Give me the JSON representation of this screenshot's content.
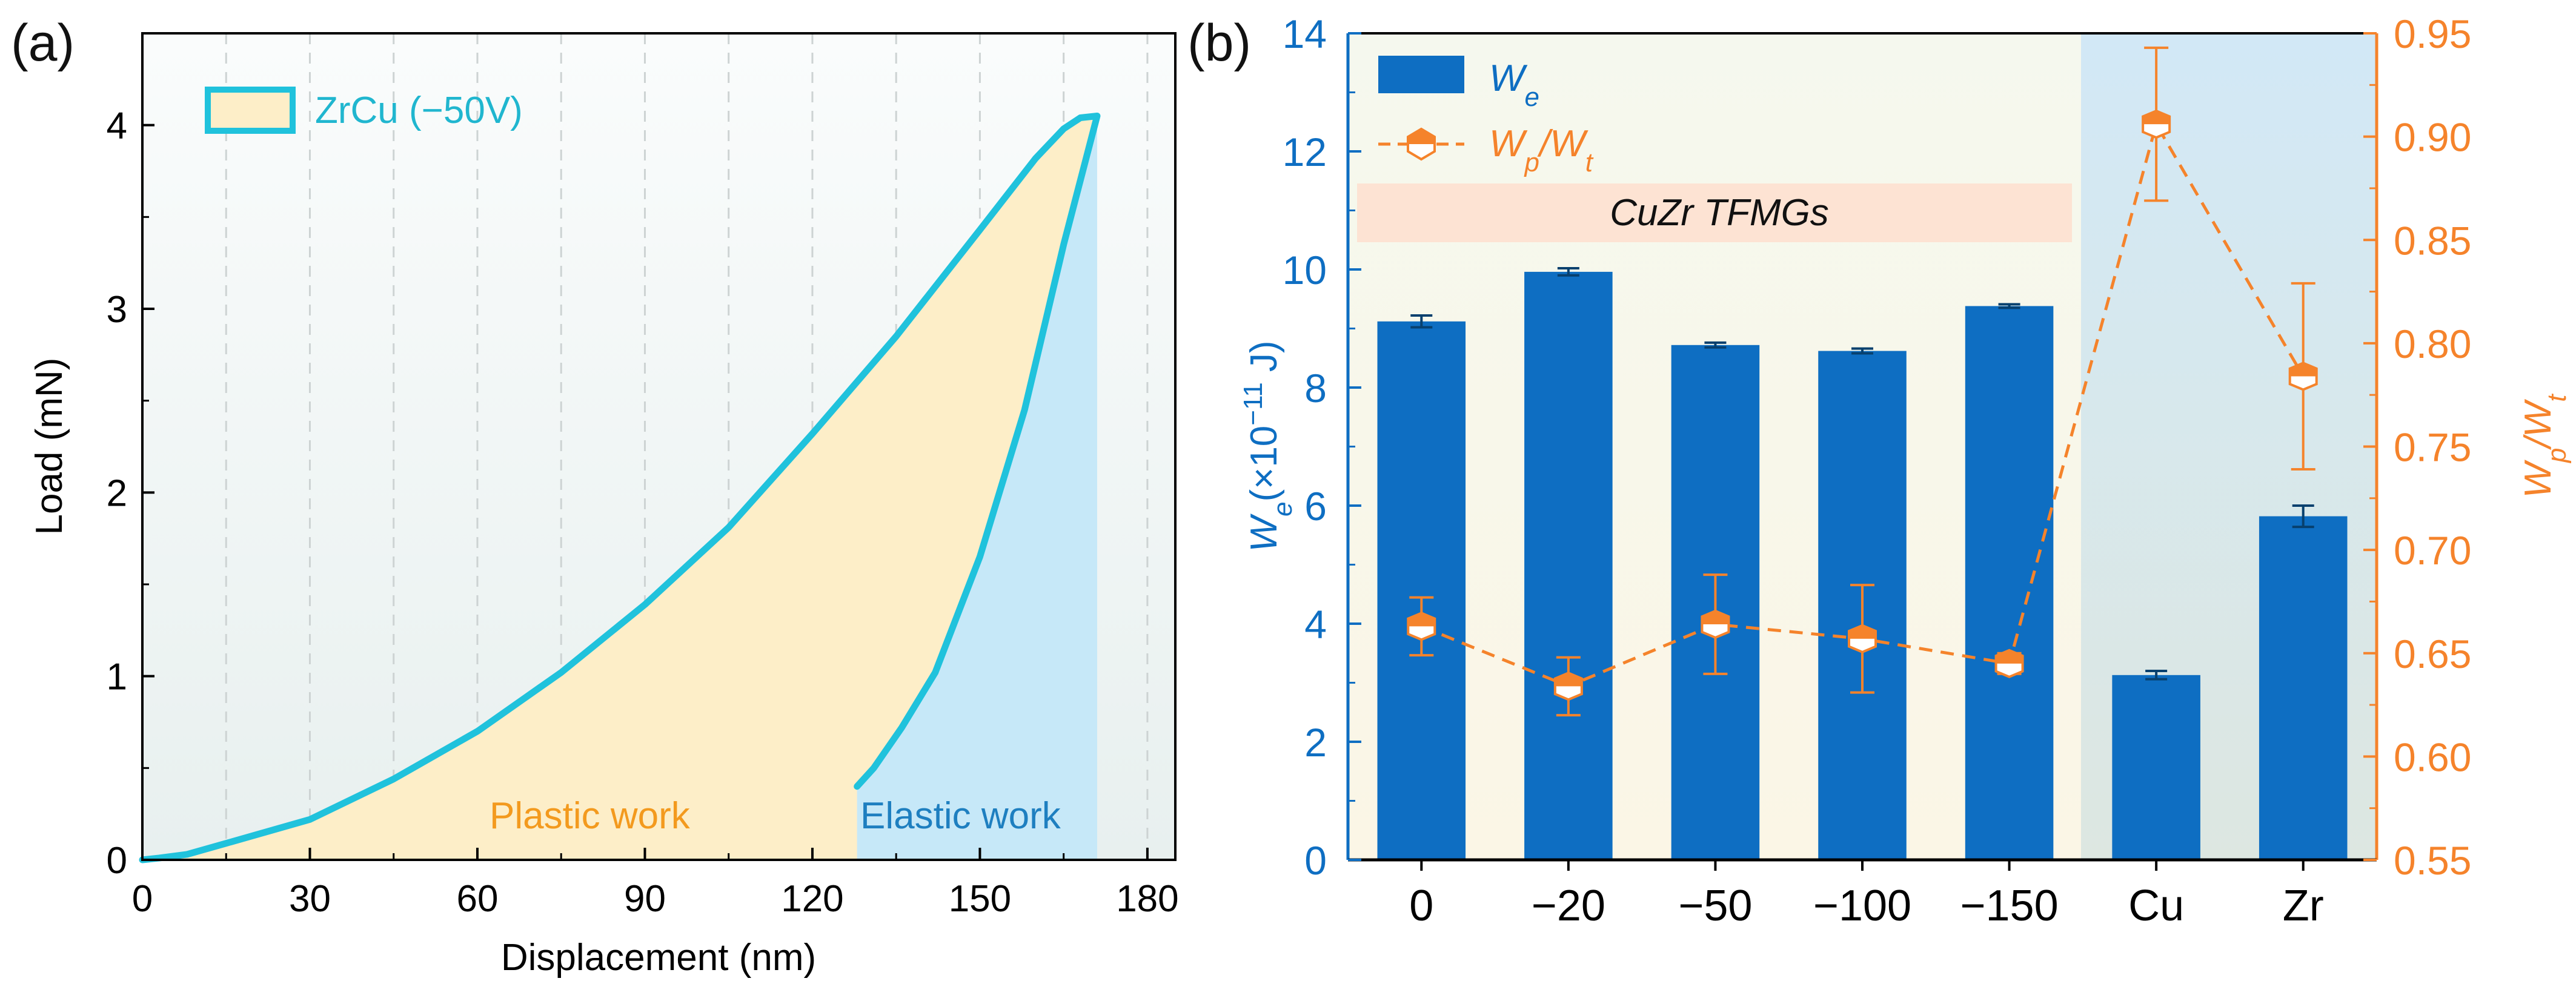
{
  "chart_data": [
    {
      "panel_label": "(a)",
      "type": "line",
      "xlabel": "Displacement (nm)",
      "ylabel": "Load (mN)",
      "xlim": [
        0,
        185
      ],
      "ylim": [
        0,
        4.5
      ],
      "xticks": [
        0,
        30,
        60,
        90,
        120,
        150,
        180
      ],
      "yticks": [
        0,
        1,
        2,
        3,
        4
      ],
      "grid": "vertical dashed",
      "legend": {
        "position": "top-left",
        "label": "ZrCu (−50V)"
      },
      "annotations": {
        "plastic": "Plastic work",
        "elastic": "Elastic work"
      },
      "series": [
        {
          "name": "loading",
          "x": [
            0,
            3,
            8,
            15,
            30,
            45,
            60,
            75,
            90,
            105,
            120,
            135,
            150,
            160,
            165,
            168
          ],
          "y": [
            0,
            0.01,
            0.03,
            0.09,
            0.22,
            0.44,
            0.7,
            1.02,
            1.39,
            1.81,
            2.32,
            2.85,
            3.43,
            3.82,
            3.98,
            4.04
          ]
        },
        {
          "name": "hold",
          "x": [
            168,
            171
          ],
          "y": [
            4.04,
            4.05
          ]
        },
        {
          "name": "unloading",
          "x": [
            171,
            165,
            158,
            150,
            142,
            136,
            131,
            128
          ],
          "y": [
            4.05,
            3.35,
            2.45,
            1.65,
            1.02,
            0.72,
            0.5,
            0.4
          ]
        }
      ]
    },
    {
      "panel_label": "(b)",
      "type": "bar",
      "categories": [
        "0",
        "−20",
        "−50",
        "−100",
        "−150",
        "Cu",
        "Zr"
      ],
      "ylabel_left": "We(×10⁻¹¹ J)",
      "ylabel_right": "Wp/Wt",
      "ylim_left": [
        0,
        14
      ],
      "ylim_right": [
        0.55,
        0.95
      ],
      "yticks_left": [
        0,
        2,
        4,
        6,
        8,
        10,
        12,
        14
      ],
      "yticks_right": [
        0.55,
        0.6,
        0.65,
        0.7,
        0.75,
        0.8,
        0.85,
        0.9,
        0.95
      ],
      "group_label": "CuZr TFMGs",
      "legend": {
        "position": "top-left",
        "bar_label": "We",
        "ratio_label": "Wp/Wt"
      },
      "series": [
        {
          "name": "We",
          "axis": "left",
          "values": [
            9.12,
            9.96,
            8.72,
            8.62,
            9.38,
            3.13,
            5.82
          ],
          "errors": [
            0.1,
            0.06,
            0.04,
            0.04,
            0.03,
            0.07,
            0.18
          ]
        },
        {
          "name": "Wp/Wt",
          "axis": "right",
          "values": [
            0.663,
            0.634,
            0.664,
            0.657,
            0.645,
            0.906,
            0.784
          ],
          "errors": [
            0.014,
            0.014,
            0.024,
            0.026,
            0.005,
            0.037,
            0.045
          ]
        }
      ]
    }
  ]
}
